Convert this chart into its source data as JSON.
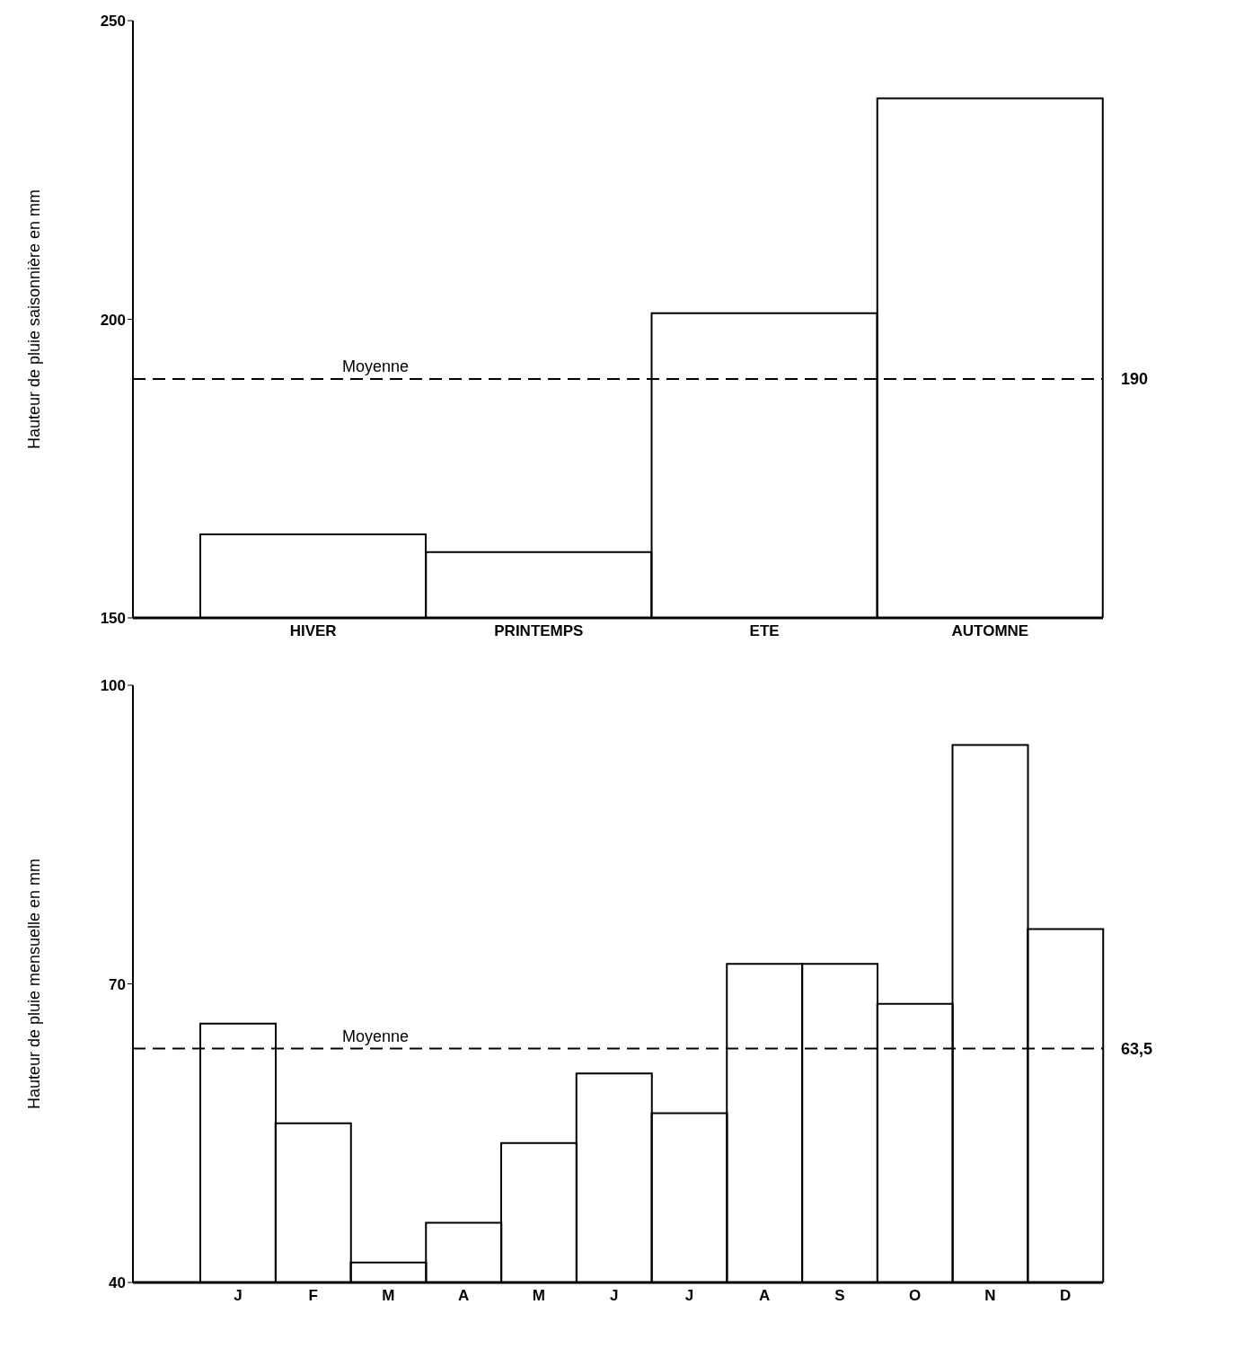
{
  "chart_data": [
    {
      "type": "bar",
      "ylabel": "Hauteur de pluie saisonnière en mm",
      "categories": [
        "HIVER",
        "PRINTEMPS",
        "ETE",
        "AUTOMNE"
      ],
      "values": [
        164,
        161,
        201,
        237
      ],
      "color": "#000000",
      "ylim": [
        150,
        250
      ],
      "yticks": [
        150,
        200,
        250
      ],
      "ref_lines": [
        {
          "axis": "y",
          "value": 190,
          "label": "Moyenne",
          "line_style": "dashed"
        }
      ],
      "annotations": [
        "190"
      ]
    },
    {
      "type": "bar",
      "ylabel": "Hauteur de pluie mensuelle en mm",
      "categories": [
        "J",
        "F",
        "M",
        "A",
        "M",
        "J",
        "J",
        "A",
        "S",
        "O",
        "N",
        "D"
      ],
      "values": [
        66,
        56,
        42,
        46,
        54,
        61,
        57,
        72,
        72,
        68,
        94,
        75.5
      ],
      "color": "#000000",
      "ylim": [
        40,
        100
      ],
      "yticks": [
        40,
        70,
        100
      ],
      "ref_lines": [
        {
          "axis": "y",
          "value": 63.5,
          "label": "Moyenne",
          "line_style": "dashed"
        }
      ],
      "annotations": [
        "63,5"
      ]
    }
  ]
}
